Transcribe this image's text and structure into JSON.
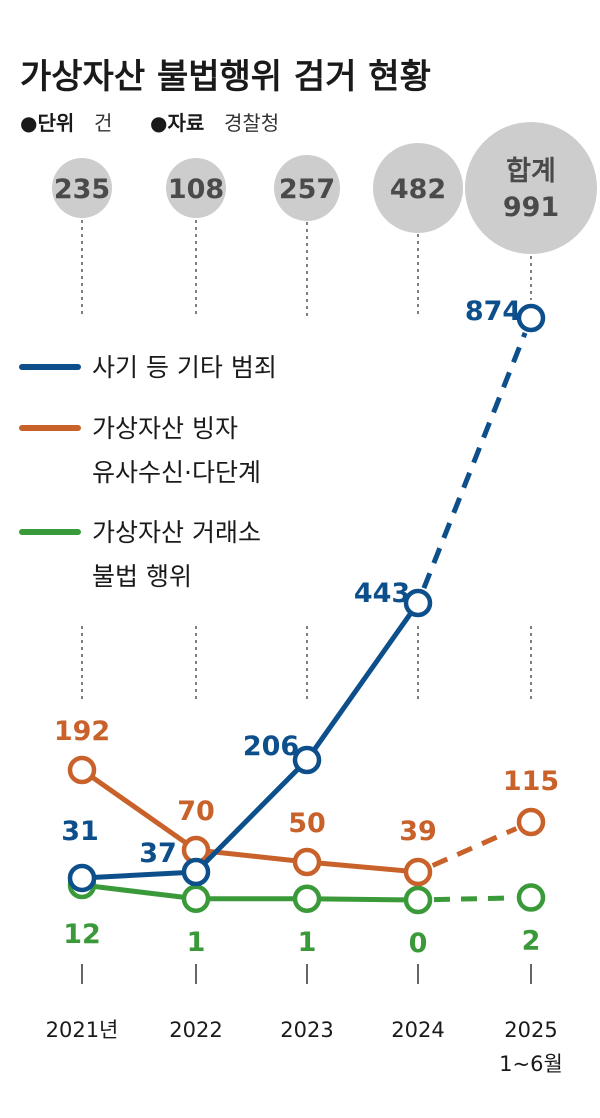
{
  "title": "가상자산 불법행위 검거 현황",
  "meta": {
    "unit_key": "●단위",
    "unit_val": "건",
    "source_key": "●자료",
    "source_val": "경찰청"
  },
  "chart_data": {
    "type": "line",
    "categories": [
      "2021년",
      "2022",
      "2023",
      "2024",
      "2025"
    ],
    "category_sublabels": [
      "",
      "",
      "",
      "",
      "1~6월"
    ],
    "totals": [
      "235",
      "108",
      "257",
      "482",
      "991"
    ],
    "total_last_label": "합계",
    "dashed_from_index": 3,
    "series": [
      {
        "name": "사기 등 기타 범죄",
        "name_lines": [
          "사기 등 기타 범죄"
        ],
        "color": "#0d4f8b",
        "values": [
          31,
          37,
          206,
          443,
          874
        ]
      },
      {
        "name": "가상자산 빙자 유사수신·다단계",
        "name_lines": [
          "가상자산 빙자",
          "유사수신·다단계"
        ],
        "color": "#c8612a",
        "values": [
          192,
          70,
          50,
          39,
          115
        ]
      },
      {
        "name": "가상자산 거래소 불법 행위",
        "name_lines": [
          "가상자산 거래소",
          "불법 행위"
        ],
        "color": "#3a9a3a",
        "values": [
          12,
          1,
          1,
          0,
          2
        ]
      }
    ]
  }
}
